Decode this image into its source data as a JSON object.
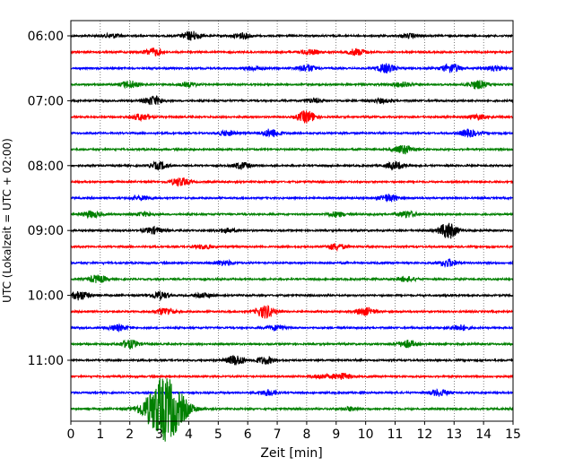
{
  "chart_data": {
    "type": "line",
    "title": "",
    "xlabel": "Zeit  [min]",
    "ylabel": "UTC (Lokalzeit = UTC + 02:00)",
    "xlim": [
      0,
      15
    ],
    "x_ticks": [
      "0",
      "1",
      "2",
      "3",
      "4",
      "5",
      "6",
      "7",
      "8",
      "9",
      "10",
      "11",
      "12",
      "13",
      "14",
      "15"
    ],
    "y_tick_labels": [
      "06:00",
      "07:00",
      "08:00",
      "09:00",
      "10:00",
      "11:00"
    ],
    "trace_interval_minutes": 15,
    "grid": "vertical dotted",
    "traces": [
      {
        "start": "06:00",
        "color": "#000000",
        "events": [
          {
            "t": 1.4,
            "amp": 0.25
          },
          {
            "t": 4.1,
            "amp": 0.55
          },
          {
            "t": 5.8,
            "amp": 0.35
          },
          {
            "t": 11.5,
            "amp": 0.25
          }
        ]
      },
      {
        "start": "06:15",
        "color": "#ff0000",
        "events": [
          {
            "t": 2.8,
            "amp": 0.45
          },
          {
            "t": 8.1,
            "amp": 0.3
          },
          {
            "t": 9.7,
            "amp": 0.4
          }
        ]
      },
      {
        "start": "06:30",
        "color": "#0000ff",
        "events": [
          {
            "t": 6.2,
            "amp": 0.25
          },
          {
            "t": 8.0,
            "amp": 0.45
          },
          {
            "t": 10.7,
            "amp": 0.55
          },
          {
            "t": 12.9,
            "amp": 0.55
          },
          {
            "t": 14.4,
            "amp": 0.3
          }
        ]
      },
      {
        "start": "06:45",
        "color": "#008000",
        "events": [
          {
            "t": 2.0,
            "amp": 0.45
          },
          {
            "t": 4.0,
            "amp": 0.25
          },
          {
            "t": 11.2,
            "amp": 0.3
          },
          {
            "t": 13.8,
            "amp": 0.5
          }
        ]
      },
      {
        "start": "07:00",
        "color": "#000000",
        "events": [
          {
            "t": 2.8,
            "amp": 0.55
          },
          {
            "t": 8.2,
            "amp": 0.25
          },
          {
            "t": 10.5,
            "amp": 0.25
          }
        ]
      },
      {
        "start": "07:15",
        "color": "#ff0000",
        "events": [
          {
            "t": 2.4,
            "amp": 0.4
          },
          {
            "t": 8.0,
            "amp": 0.75
          },
          {
            "t": 13.8,
            "amp": 0.3
          }
        ]
      },
      {
        "start": "07:30",
        "color": "#0000ff",
        "events": [
          {
            "t": 5.3,
            "amp": 0.3
          },
          {
            "t": 6.8,
            "amp": 0.5
          },
          {
            "t": 13.5,
            "amp": 0.45
          }
        ]
      },
      {
        "start": "07:45",
        "color": "#008000",
        "events": [
          {
            "t": 11.3,
            "amp": 0.55
          }
        ]
      },
      {
        "start": "08:00",
        "color": "#000000",
        "events": [
          {
            "t": 3.0,
            "amp": 0.45
          },
          {
            "t": 5.8,
            "amp": 0.4
          },
          {
            "t": 11.0,
            "amp": 0.45
          }
        ]
      },
      {
        "start": "08:15",
        "color": "#ff0000",
        "events": [
          {
            "t": 3.7,
            "amp": 0.5
          }
        ]
      },
      {
        "start": "08:30",
        "color": "#0000ff",
        "events": [
          {
            "t": 2.4,
            "amp": 0.25
          },
          {
            "t": 10.8,
            "amp": 0.45
          }
        ]
      },
      {
        "start": "08:45",
        "color": "#008000",
        "events": [
          {
            "t": 0.7,
            "amp": 0.4
          },
          {
            "t": 2.5,
            "amp": 0.25
          },
          {
            "t": 9.0,
            "amp": 0.3
          },
          {
            "t": 11.4,
            "amp": 0.4
          }
        ]
      },
      {
        "start": "09:00",
        "color": "#000000",
        "events": [
          {
            "t": 2.8,
            "amp": 0.4
          },
          {
            "t": 5.3,
            "amp": 0.25
          },
          {
            "t": 12.8,
            "amp": 1.0
          }
        ]
      },
      {
        "start": "09:15",
        "color": "#ff0000",
        "events": [
          {
            "t": 4.5,
            "amp": 0.25
          },
          {
            "t": 9.0,
            "amp": 0.4
          }
        ]
      },
      {
        "start": "09:30",
        "color": "#0000ff",
        "events": [
          {
            "t": 5.2,
            "amp": 0.3
          },
          {
            "t": 12.8,
            "amp": 0.45
          }
        ]
      },
      {
        "start": "09:45",
        "color": "#008000",
        "events": [
          {
            "t": 0.9,
            "amp": 0.45
          },
          {
            "t": 11.4,
            "amp": 0.3
          }
        ]
      },
      {
        "start": "10:00",
        "color": "#000000",
        "events": [
          {
            "t": 0.3,
            "amp": 0.55
          },
          {
            "t": 3.0,
            "amp": 0.45
          },
          {
            "t": 4.5,
            "amp": 0.25
          }
        ]
      },
      {
        "start": "10:15",
        "color": "#ff0000",
        "events": [
          {
            "t": 3.2,
            "amp": 0.45
          },
          {
            "t": 6.6,
            "amp": 0.8
          },
          {
            "t": 10.0,
            "amp": 0.45
          }
        ]
      },
      {
        "start": "10:30",
        "color": "#0000ff",
        "events": [
          {
            "t": 1.6,
            "amp": 0.35
          },
          {
            "t": 7.0,
            "amp": 0.3
          },
          {
            "t": 13.2,
            "amp": 0.35
          }
        ]
      },
      {
        "start": "10:45",
        "color": "#008000",
        "events": [
          {
            "t": 2.0,
            "amp": 0.5
          },
          {
            "t": 11.4,
            "amp": 0.45
          }
        ]
      },
      {
        "start": "11:00",
        "color": "#000000",
        "events": [
          {
            "t": 5.6,
            "amp": 0.6
          },
          {
            "t": 6.6,
            "amp": 0.45
          }
        ]
      },
      {
        "start": "11:15",
        "color": "#ff0000",
        "events": [
          {
            "t": 8.5,
            "amp": 0.25
          },
          {
            "t": 9.2,
            "amp": 0.4
          }
        ]
      },
      {
        "start": "11:30",
        "color": "#0000ff",
        "events": [
          {
            "t": 6.7,
            "amp": 0.35
          },
          {
            "t": 12.5,
            "amp": 0.4
          }
        ]
      },
      {
        "start": "11:45",
        "color": "#008000",
        "events": [
          {
            "t": 3.2,
            "amp": 4.0
          },
          {
            "t": 9.5,
            "amp": 0.25
          }
        ]
      }
    ]
  }
}
